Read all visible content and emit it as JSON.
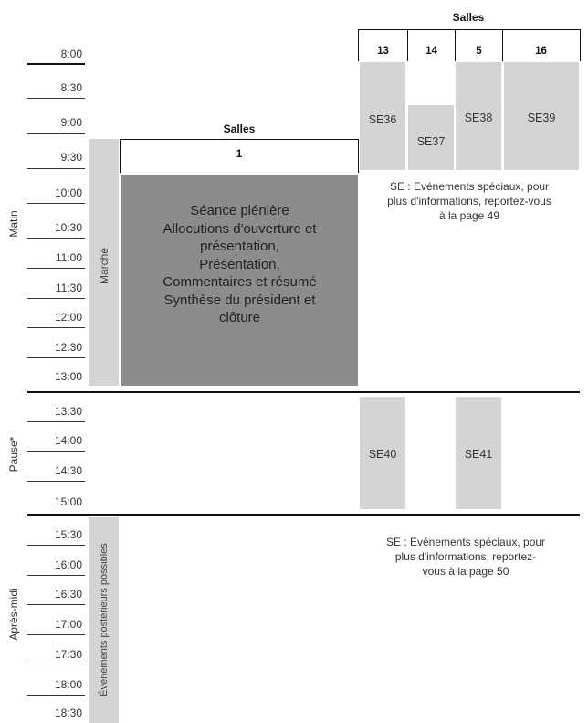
{
  "times": [
    "8:00",
    "8:30",
    "9:00",
    "9:30",
    "10:00",
    "10:30",
    "11:00",
    "11:30",
    "12:00",
    "12:30",
    "13:00",
    "13:30",
    "14:00",
    "14:30",
    "15:00",
    "15:30",
    "16:00",
    "16:30",
    "17:00",
    "17:30",
    "18:00",
    "18:30"
  ],
  "periods": {
    "morning": "Matin",
    "pause": "Pause*",
    "afternoon": "Après-midi"
  },
  "rooms_top": {
    "heading": "Salles",
    "rooms": [
      "13",
      "14",
      "5",
      "16"
    ]
  },
  "rooms_main": {
    "heading": "Salles",
    "room": "1"
  },
  "marche": "Marché",
  "plenary": {
    "lines": [
      "Séance plénière",
      "Allocutions d'ouverture et",
      "présentation,",
      "Présentation,",
      "Commentaires et résumé",
      "Synthèse du président et",
      "clôture"
    ]
  },
  "special_events_morning": [
    "SE36",
    "SE37",
    "SE38",
    "SE39"
  ],
  "special_events_pause": [
    "SE40",
    "SE41"
  ],
  "note_morning": [
    "SE : Evénements spéciaux, pour",
    "plus d'informations, reportez-vous",
    "à la page 49"
  ],
  "note_afternoon": [
    "SE : Evénements spéciaux, pour",
    "plus d'informations, reportez-",
    "vous à la page 50"
  ],
  "afternoon_block": "Événements postérieurs possibles"
}
